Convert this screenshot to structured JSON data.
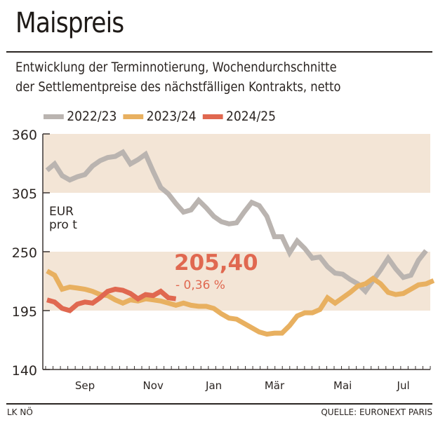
{
  "header": {
    "title": "Maispreis",
    "subtitle_line1": "Entwicklung der Terminnotierung, Wochendurchschnitte",
    "subtitle_line2": "der Settlementpreise des nächstfälligen Kontrakts, netto"
  },
  "footer": {
    "left": "LK NÖ",
    "right": "QUELLE: EURONEXT PARIS"
  },
  "colors": {
    "band": "#f3e5d6",
    "axis": "#3a3330",
    "s2022": "#bab4b0",
    "s2023": "#e8b060",
    "s2024": "#e06850",
    "annotation": "#e06850"
  },
  "chart_data": {
    "type": "line",
    "title": "Maispreis",
    "ylabel": "EUR pro t",
    "unit_line1": "EUR",
    "unit_line2": "pro t",
    "ylim": [
      140,
      360
    ],
    "yticks": [
      "360",
      "305",
      "250",
      "195",
      "140"
    ],
    "ytick_values": [
      360,
      305,
      250,
      195,
      140
    ],
    "bands": [
      [
        305,
        360
      ],
      [
        195,
        250
      ]
    ],
    "weeks": 52,
    "xtick_labels": [
      {
        "label": "Sep",
        "week": 5
      },
      {
        "label": "Nov",
        "week": 14
      },
      {
        "label": "Jan",
        "week": 22
      },
      {
        "label": "Mär",
        "week": 30
      },
      {
        "label": "Mai",
        "week": 39
      },
      {
        "label": "Jul",
        "week": 47
      }
    ],
    "legend": "top-left",
    "series": [
      {
        "name": "2022/23",
        "color": "#bab4b0",
        "values": [
          326,
          332,
          321,
          317,
          320,
          322,
          330,
          335,
          338,
          339,
          343,
          332,
          336,
          341,
          325,
          310,
          304,
          295,
          287,
          289,
          298,
          291,
          283,
          278,
          276,
          277,
          287,
          296,
          293,
          283,
          264,
          264,
          249,
          260,
          253,
          244,
          245,
          236,
          230,
          229,
          224,
          220,
          213,
          223,
          233,
          244,
          234,
          226,
          228,
          242,
          251
        ]
      },
      {
        "name": "2023/24",
        "color": "#e8b060",
        "values": [
          232,
          228,
          215,
          217,
          216,
          215,
          213,
          210,
          209,
          205,
          202,
          205,
          204,
          206,
          205,
          204,
          202,
          200,
          202,
          200,
          199,
          199,
          197,
          192,
          188,
          187,
          183,
          179,
          175,
          173,
          174,
          174,
          181,
          190,
          193,
          193,
          196,
          207,
          202,
          207,
          212,
          218,
          220,
          225,
          220,
          212,
          210,
          211,
          215,
          219,
          220,
          223
        ]
      },
      {
        "name": "2024/25",
        "color": "#e06850",
        "values": [
          205,
          203,
          197,
          195,
          201,
          203,
          202,
          207,
          213,
          215,
          214,
          211,
          206,
          210,
          209,
          213,
          207,
          206
        ]
      }
    ],
    "annotation": {
      "value": "205,40",
      "change": "- 0,36 %"
    }
  }
}
